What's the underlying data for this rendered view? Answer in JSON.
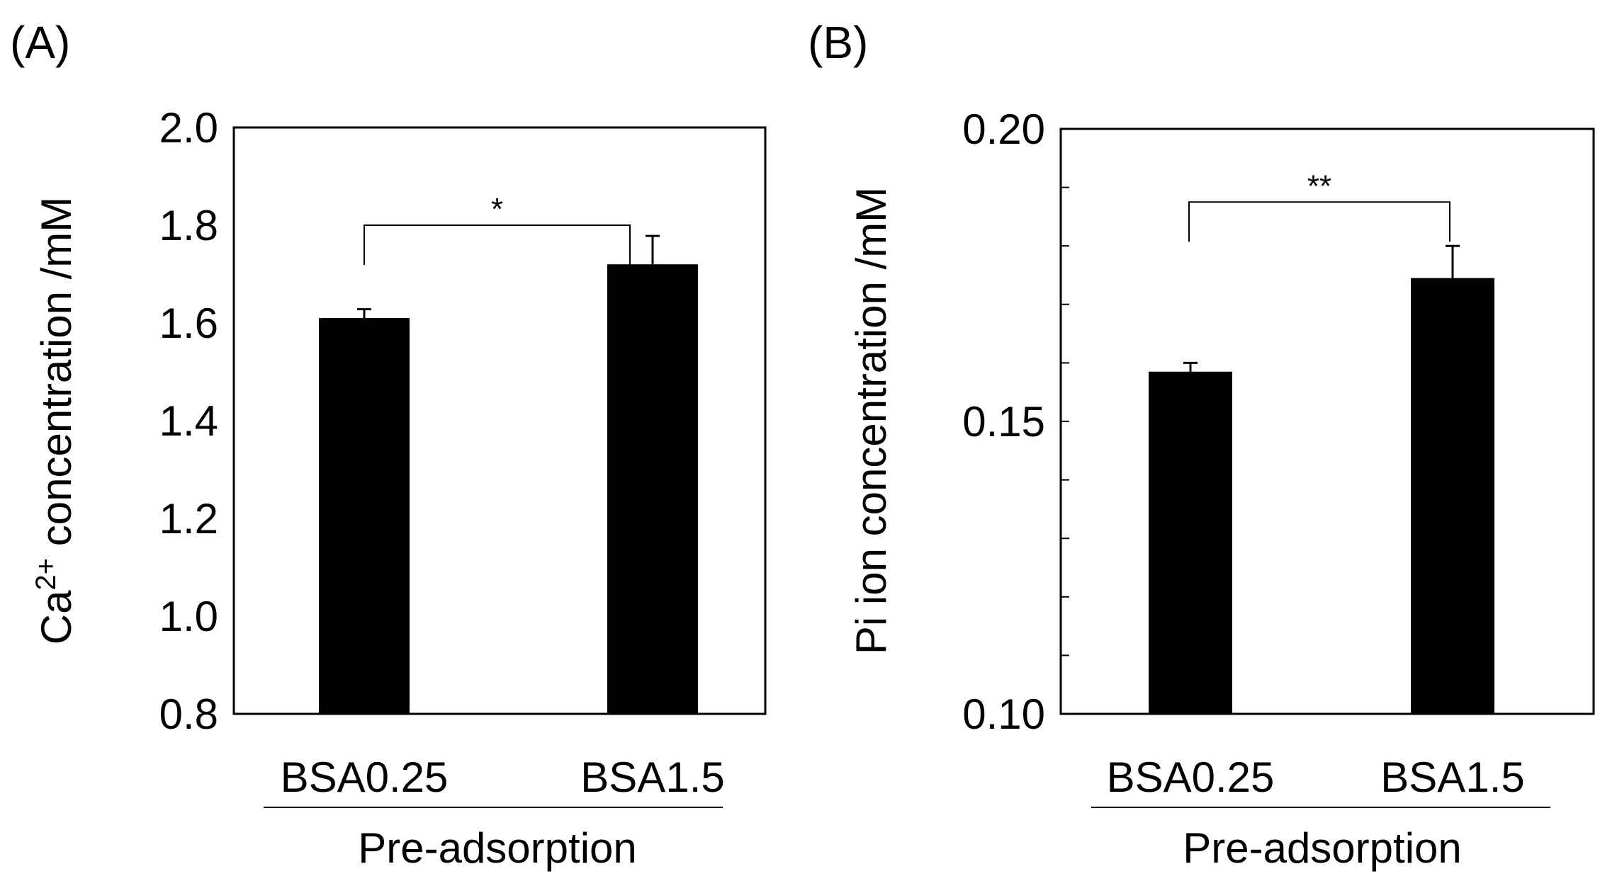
{
  "chart_data": [
    {
      "panel_label": "(A)",
      "type": "bar",
      "categories": [
        "BSA0.25",
        "BSA1.5"
      ],
      "values": [
        1.61,
        1.72
      ],
      "errors": [
        0.018,
        0.058
      ],
      "ylabel_main": "Ca",
      "ylabel_sup": "2+",
      "ylabel_rest": " concentration /mM",
      "group_label": "Pre-adsorption",
      "ylim": [
        0.8,
        2.0
      ],
      "yticks": [
        0.8,
        1.0,
        1.2,
        1.4,
        1.6,
        1.8,
        2.0
      ],
      "ytick_labels": [
        "0.8",
        "1.0",
        "1.2",
        "1.4",
        "1.6",
        "1.8",
        "2.0"
      ],
      "significance": {
        "label": "*",
        "bracket_y": 1.8
      },
      "colors": {
        "bar": "#000000",
        "frame": "#000000"
      }
    },
    {
      "panel_label": "(B)",
      "type": "bar",
      "categories": [
        "BSA0.25",
        "BSA1.5"
      ],
      "values": [
        0.1585,
        0.1745
      ],
      "errors": [
        0.0015,
        0.0055
      ],
      "ylabel_main": "Pi ion concentration /mM",
      "group_label": "Pre-adsorption",
      "ylim": [
        0.1,
        0.2
      ],
      "yticks": [
        0.1,
        0.11,
        0.12,
        0.13,
        0.14,
        0.15,
        0.16,
        0.17,
        0.18,
        0.19,
        0.2
      ],
      "ytick_labels": [
        "0.10",
        "",
        "",
        "",
        "",
        "0.15",
        "",
        "",
        "",
        "",
        "0.20"
      ],
      "significance": {
        "label": "**",
        "bracket_y": 0.1875
      },
      "colors": {
        "bar": "#000000",
        "frame": "#000000"
      }
    }
  ]
}
